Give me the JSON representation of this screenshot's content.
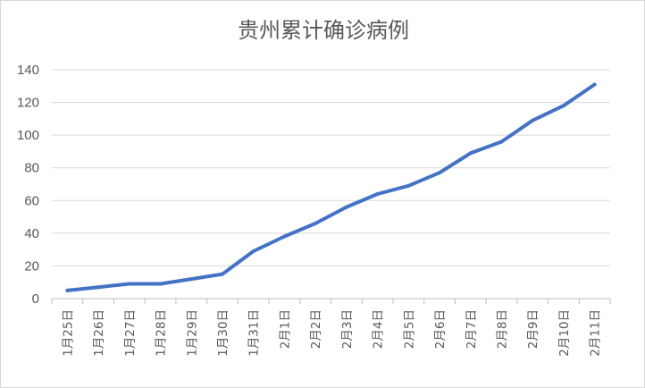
{
  "chart_data": {
    "type": "line",
    "title": "贵州累计确诊病例",
    "xlabel": "",
    "ylabel": "",
    "ylim": [
      0,
      140
    ],
    "yticks": [
      0,
      20,
      40,
      60,
      80,
      100,
      120,
      140
    ],
    "grid": true,
    "legend": "none",
    "categories": [
      "1月25日",
      "1月26日",
      "1月27日",
      "1月28日",
      "1月29日",
      "1月30日",
      "1月31日",
      "2月1日",
      "2月2日",
      "2月3日",
      "2月4日",
      "2月5日",
      "2月6日",
      "2月7日",
      "2月8日",
      "2月9日",
      "2月10日",
      "2月11日"
    ],
    "series": [
      {
        "values": [
          5,
          7,
          9,
          9,
          12,
          15,
          29,
          38,
          46,
          56,
          64,
          69,
          77,
          89,
          96,
          109,
          118,
          131
        ],
        "color": "#4472c4"
      }
    ]
  }
}
